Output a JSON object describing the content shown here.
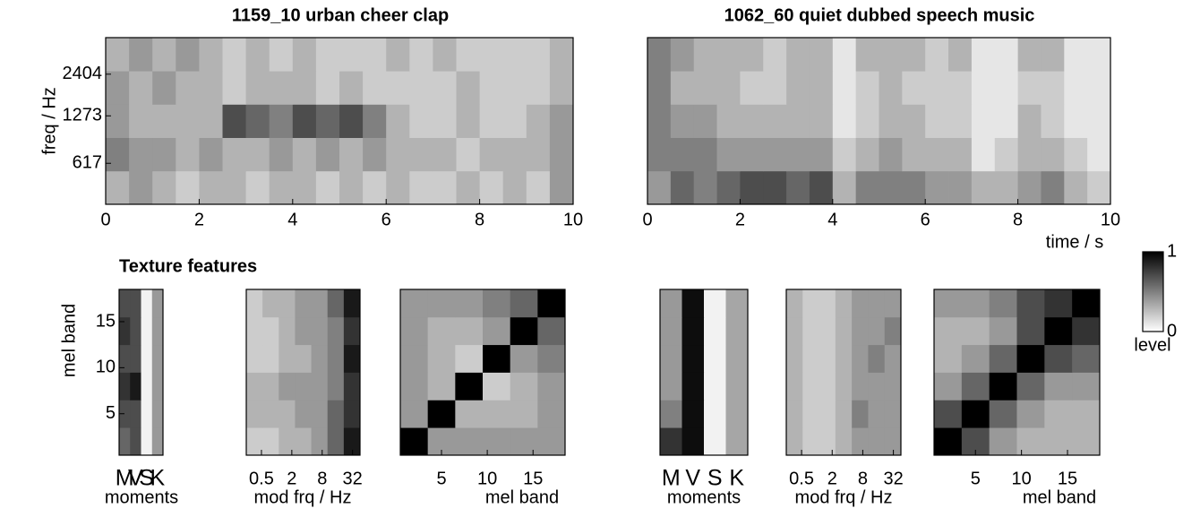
{
  "chart_data": [
    {
      "type": "heatmap",
      "title": "1159_10 urban cheer clap",
      "ylabel": "freq / Hz",
      "xlim": [
        0,
        10
      ],
      "xticks": [
        0,
        2,
        4,
        6,
        8,
        10
      ],
      "yscale": "log",
      "ylim": [
        330,
        4200
      ],
      "yticks": [
        617,
        1273,
        2404
      ],
      "z": [
        [
          0.3,
          0.4,
          0.3,
          0.2,
          0.3,
          0.3,
          0.2,
          0.3,
          0.3,
          0.2,
          0.3,
          0.2,
          0.3,
          0.2,
          0.2,
          0.3,
          0.2,
          0.3,
          0.2,
          0.4
        ],
        [
          0.5,
          0.4,
          0.4,
          0.3,
          0.4,
          0.3,
          0.3,
          0.4,
          0.3,
          0.4,
          0.3,
          0.4,
          0.3,
          0.3,
          0.3,
          0.2,
          0.3,
          0.3,
          0.3,
          0.4
        ],
        [
          0.4,
          0.3,
          0.3,
          0.3,
          0.3,
          0.7,
          0.6,
          0.5,
          0.7,
          0.6,
          0.7,
          0.5,
          0.3,
          0.2,
          0.2,
          0.3,
          0.2,
          0.2,
          0.3,
          0.4
        ],
        [
          0.4,
          0.3,
          0.4,
          0.3,
          0.3,
          0.2,
          0.3,
          0.3,
          0.3,
          0.2,
          0.3,
          0.2,
          0.2,
          0.2,
          0.2,
          0.3,
          0.2,
          0.2,
          0.2,
          0.3
        ],
        [
          0.3,
          0.4,
          0.3,
          0.4,
          0.3,
          0.2,
          0.3,
          0.2,
          0.3,
          0.2,
          0.2,
          0.2,
          0.3,
          0.2,
          0.3,
          0.2,
          0.2,
          0.2,
          0.2,
          0.3
        ]
      ]
    },
    {
      "type": "heatmap",
      "title": "1062_60 quiet dubbed speech music",
      "xlabel": "time / s",
      "xlim": [
        0,
        10
      ],
      "xticks": [
        0,
        2,
        4,
        6,
        8,
        10
      ],
      "z": [
        [
          0.4,
          0.6,
          0.5,
          0.6,
          0.7,
          0.7,
          0.6,
          0.7,
          0.3,
          0.5,
          0.5,
          0.5,
          0.4,
          0.4,
          0.3,
          0.3,
          0.4,
          0.5,
          0.3,
          0.2
        ],
        [
          0.5,
          0.5,
          0.5,
          0.4,
          0.4,
          0.4,
          0.4,
          0.4,
          0.2,
          0.3,
          0.4,
          0.3,
          0.3,
          0.3,
          0.1,
          0.2,
          0.3,
          0.3,
          0.2,
          0.1
        ],
        [
          0.5,
          0.4,
          0.4,
          0.3,
          0.3,
          0.3,
          0.3,
          0.3,
          0.1,
          0.2,
          0.3,
          0.3,
          0.2,
          0.2,
          0.1,
          0.1,
          0.3,
          0.2,
          0.1,
          0.1
        ],
        [
          0.5,
          0.3,
          0.3,
          0.3,
          0.2,
          0.2,
          0.3,
          0.3,
          0.1,
          0.2,
          0.3,
          0.2,
          0.2,
          0.2,
          0.1,
          0.1,
          0.2,
          0.2,
          0.1,
          0.1
        ],
        [
          0.5,
          0.4,
          0.3,
          0.3,
          0.3,
          0.2,
          0.3,
          0.3,
          0.1,
          0.3,
          0.3,
          0.3,
          0.2,
          0.3,
          0.1,
          0.1,
          0.3,
          0.3,
          0.1,
          0.1
        ]
      ]
    },
    {
      "type": "heatmap",
      "title": "Texture features",
      "ylabel": "mel band",
      "xlabel": "moments",
      "categories": [
        "M",
        "V",
        "S",
        "K"
      ],
      "ylim": [
        0.5,
        18.5
      ],
      "yticks": [
        5,
        10,
        15
      ],
      "z": [
        [
          0.6,
          0.7,
          0.05,
          0.4
        ],
        [
          0.7,
          0.7,
          0.05,
          0.4
        ],
        [
          0.8,
          0.9,
          0.05,
          0.4
        ],
        [
          0.7,
          0.7,
          0.05,
          0.4
        ],
        [
          0.8,
          0.7,
          0.05,
          0.4
        ],
        [
          0.7,
          0.7,
          0.05,
          0.4
        ]
      ]
    },
    {
      "type": "heatmap",
      "xlabel": "mod frq / Hz",
      "xscale": "log",
      "xlim": [
        0.25,
        45
      ],
      "xticks": [
        0.5,
        2,
        8,
        32
      ],
      "z": [
        [
          0.2,
          0.2,
          0.3,
          0.3,
          0.4,
          0.6,
          0.9
        ],
        [
          0.3,
          0.3,
          0.3,
          0.4,
          0.4,
          0.6,
          0.8
        ],
        [
          0.3,
          0.3,
          0.4,
          0.4,
          0.4,
          0.5,
          0.8
        ],
        [
          0.2,
          0.2,
          0.3,
          0.3,
          0.4,
          0.5,
          0.9
        ],
        [
          0.2,
          0.2,
          0.3,
          0.4,
          0.4,
          0.5,
          0.8
        ],
        [
          0.2,
          0.3,
          0.3,
          0.4,
          0.4,
          0.6,
          0.9
        ]
      ]
    },
    {
      "type": "heatmap",
      "xlabel": "mel band",
      "xlim": [
        0.5,
        18.5
      ],
      "xticks": [
        5,
        10,
        15
      ],
      "z": [
        [
          1,
          0.4,
          0.4,
          0.4,
          0.4,
          0.4
        ],
        [
          0.4,
          1,
          0.3,
          0.3,
          0.3,
          0.4
        ],
        [
          0.4,
          0.3,
          1,
          0.2,
          0.3,
          0.4
        ],
        [
          0.4,
          0.3,
          0.2,
          1,
          0.4,
          0.5
        ],
        [
          0.4,
          0.3,
          0.3,
          0.4,
          1,
          0.6
        ],
        [
          0.4,
          0.4,
          0.4,
          0.5,
          0.6,
          1
        ]
      ]
    },
    {
      "type": "heatmap",
      "xlabel": "moments",
      "categories": [
        "M",
        "V",
        "S",
        "K"
      ],
      "z": [
        [
          0.8,
          0.95,
          0.05,
          0.35
        ],
        [
          0.5,
          0.95,
          0.05,
          0.35
        ],
        [
          0.4,
          0.95,
          0.05,
          0.35
        ],
        [
          0.4,
          0.95,
          0.05,
          0.35
        ],
        [
          0.4,
          0.95,
          0.05,
          0.35
        ],
        [
          0.4,
          0.95,
          0.05,
          0.35
        ]
      ]
    },
    {
      "type": "heatmap",
      "xlabel": "mod frq / Hz",
      "xscale": "log",
      "xlim": [
        0.25,
        45
      ],
      "xticks": [
        0.5,
        2,
        8,
        32
      ],
      "z": [
        [
          0.3,
          0.2,
          0.2,
          0.3,
          0.4,
          0.4,
          0.4
        ],
        [
          0.3,
          0.2,
          0.2,
          0.3,
          0.5,
          0.4,
          0.4
        ],
        [
          0.3,
          0.2,
          0.2,
          0.3,
          0.4,
          0.4,
          0.4
        ],
        [
          0.3,
          0.2,
          0.2,
          0.3,
          0.4,
          0.5,
          0.4
        ],
        [
          0.3,
          0.2,
          0.2,
          0.3,
          0.4,
          0.4,
          0.5
        ],
        [
          0.3,
          0.2,
          0.2,
          0.3,
          0.4,
          0.4,
          0.4
        ]
      ]
    },
    {
      "type": "heatmap",
      "xlabel": "mel band",
      "xlim": [
        0.5,
        18.5
      ],
      "xticks": [
        5,
        10,
        15
      ],
      "z": [
        [
          1,
          0.7,
          0.4,
          0.3,
          0.3,
          0.3
        ],
        [
          0.7,
          1,
          0.6,
          0.4,
          0.3,
          0.3
        ],
        [
          0.4,
          0.6,
          1,
          0.6,
          0.4,
          0.4
        ],
        [
          0.3,
          0.4,
          0.6,
          1,
          0.7,
          0.6
        ],
        [
          0.3,
          0.3,
          0.4,
          0.7,
          1,
          0.8
        ],
        [
          0.4,
          0.4,
          0.5,
          0.7,
          0.8,
          1
        ]
      ]
    },
    {
      "type": "colorbar",
      "ylabel": "level",
      "ylim": [
        0,
        1
      ],
      "yticks": [
        0,
        1
      ]
    }
  ]
}
